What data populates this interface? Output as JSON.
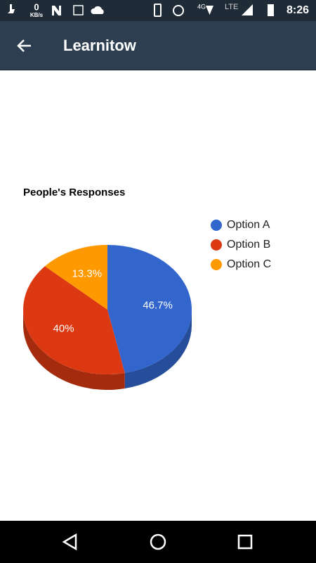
{
  "status_bar": {
    "speed": "0",
    "speed_unit": "KB/s",
    "network_4g": "4G",
    "network_lte": "LTE",
    "time": "8:26"
  },
  "app_bar": {
    "title": "Learnitow"
  },
  "chart_data": {
    "type": "pie",
    "title": "People's Responses",
    "categories": [
      "Option A",
      "Option B",
      "Option C"
    ],
    "values": [
      46.7,
      40,
      13.3
    ],
    "value_labels": [
      "46.7%",
      "40%",
      "13.3%"
    ],
    "colors": [
      "#3366cc",
      "#dc3912",
      "#ff9900"
    ],
    "legend": "right",
    "three_d": true
  }
}
